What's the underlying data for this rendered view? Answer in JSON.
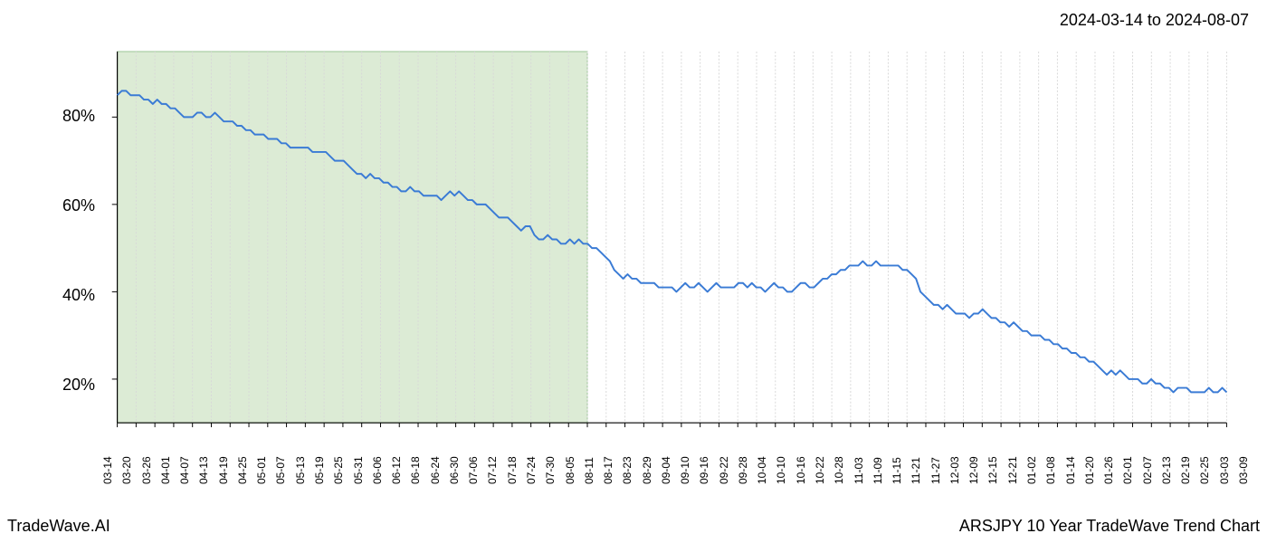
{
  "header": {
    "date_range": "2024-03-14 to 2024-08-07"
  },
  "footer": {
    "brand": "TradeWave.AI",
    "chart_title": "ARSJPY 10 Year TradeWave Trend Chart"
  },
  "chart": {
    "type": "line",
    "background_color": "#ffffff",
    "highlight_region": {
      "start_index": 0,
      "end_index": 25,
      "fill_color": "#dcebd5",
      "border_color": "#9bc496"
    },
    "line_color": "#3a7bd5",
    "line_width": 2,
    "grid_color": "#d8d8d8",
    "axis_color": "#000000",
    "y_axis": {
      "min": 10,
      "max": 95,
      "ticks": [
        20,
        40,
        60,
        80
      ],
      "tick_labels": [
        "20%",
        "40%",
        "60%",
        "80%"
      ],
      "label_fontsize": 18
    },
    "x_axis": {
      "labels": [
        "03-14",
        "03-20",
        "03-26",
        "04-01",
        "04-07",
        "04-13",
        "04-19",
        "04-25",
        "05-01",
        "05-07",
        "05-13",
        "05-19",
        "05-25",
        "05-31",
        "06-06",
        "06-12",
        "06-18",
        "06-24",
        "06-30",
        "07-06",
        "07-12",
        "07-18",
        "07-24",
        "07-30",
        "08-05",
        "08-11",
        "08-17",
        "08-23",
        "08-29",
        "09-04",
        "09-10",
        "09-16",
        "09-22",
        "09-28",
        "10-04",
        "10-10",
        "10-16",
        "10-22",
        "10-28",
        "11-03",
        "11-09",
        "11-15",
        "11-21",
        "11-27",
        "12-03",
        "12-09",
        "12-15",
        "12-21",
        "01-02",
        "01-08",
        "01-14",
        "01-20",
        "01-26",
        "02-01",
        "02-07",
        "02-13",
        "02-19",
        "02-25",
        "03-03",
        "03-09"
      ],
      "label_fontsize": 12
    },
    "series": {
      "values": [
        85,
        86,
        86,
        85,
        85,
        85,
        84,
        84,
        83,
        84,
        83,
        83,
        82,
        82,
        81,
        80,
        80,
        80,
        81,
        81,
        80,
        80,
        81,
        80,
        79,
        79,
        79,
        78,
        78,
        77,
        77,
        76,
        76,
        76,
        75,
        75,
        75,
        74,
        74,
        73,
        73,
        73,
        73,
        73,
        72,
        72,
        72,
        72,
        71,
        70,
        70,
        70,
        69,
        68,
        67,
        67,
        66,
        67,
        66,
        66,
        65,
        65,
        64,
        64,
        63,
        63,
        64,
        63,
        63,
        62,
        62,
        62,
        62,
        61,
        62,
        63,
        62,
        63,
        62,
        61,
        61,
        60,
        60,
        60,
        59,
        58,
        57,
        57,
        57,
        56,
        55,
        54,
        55,
        55,
        53,
        52,
        52,
        53,
        52,
        52,
        51,
        51,
        52,
        51,
        52,
        51,
        51,
        50,
        50,
        49,
        48,
        47,
        45,
        44,
        43,
        44,
        43,
        43,
        42,
        42,
        42,
        42,
        41,
        41,
        41,
        41,
        40,
        41,
        42,
        41,
        41,
        42,
        41,
        40,
        41,
        42,
        41,
        41,
        41,
        41,
        42,
        42,
        41,
        42,
        41,
        41,
        40,
        41,
        42,
        41,
        41,
        40,
        40,
        41,
        42,
        42,
        41,
        41,
        42,
        43,
        43,
        44,
        44,
        45,
        45,
        46,
        46,
        46,
        47,
        46,
        46,
        47,
        46,
        46,
        46,
        46,
        46,
        45,
        45,
        44,
        43,
        40,
        39,
        38,
        37,
        37,
        36,
        37,
        36,
        35,
        35,
        35,
        34,
        35,
        35,
        36,
        35,
        34,
        34,
        33,
        33,
        32,
        33,
        32,
        31,
        31,
        30,
        30,
        30,
        29,
        29,
        28,
        28,
        27,
        27,
        26,
        26,
        25,
        25,
        24,
        24,
        23,
        22,
        21,
        22,
        21,
        22,
        21,
        20,
        20,
        20,
        19,
        19,
        20,
        19,
        19,
        18,
        18,
        17,
        18,
        18,
        18,
        17,
        17,
        17,
        17,
        18,
        17,
        17,
        18,
        17
      ]
    }
  }
}
